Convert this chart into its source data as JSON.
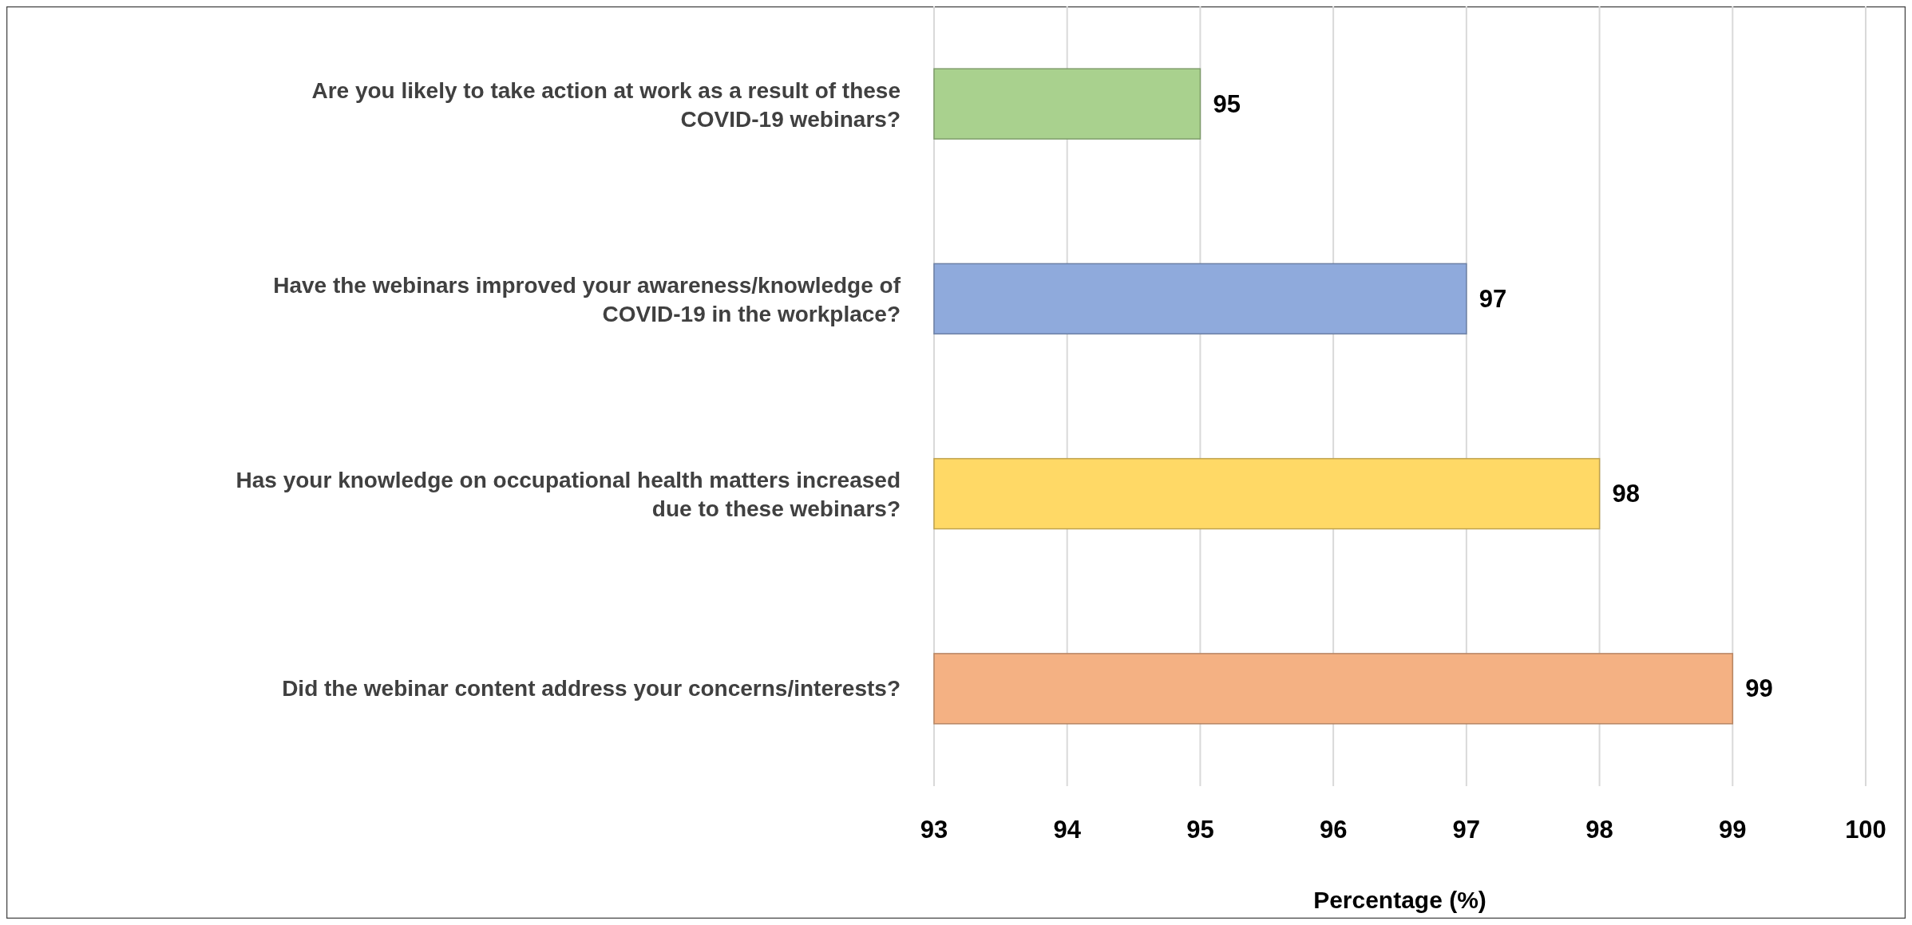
{
  "chart_data": {
    "type": "bar",
    "orientation": "horizontal",
    "xlabel": "Percentage (%)",
    "categories": [
      "Are you likely to take action at work as a result of these COVID-19 webinars?",
      "Have the webinars improved your awareness/knowledge of COVID-19 in the workplace?",
      "Has your knowledge on occupational health matters increased due to these webinars?",
      "Did the webinar content address your concerns/interests?"
    ],
    "values": [
      95,
      97,
      98,
      99
    ],
    "colors": [
      "#a9d18e",
      "#8faadc",
      "#ffd966",
      "#f4b183"
    ],
    "xlim": [
      93,
      100
    ],
    "xticks": [
      93,
      94,
      95,
      96,
      97,
      98,
      99,
      100
    ],
    "grid": "x",
    "data_labels": true
  }
}
